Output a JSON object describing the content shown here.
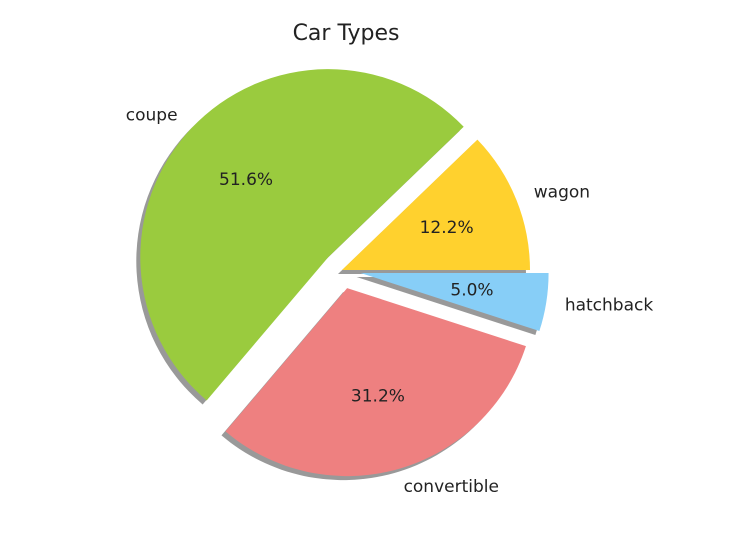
{
  "chart_data": {
    "type": "pie",
    "title": "Car Types",
    "start_angle_deg": 0,
    "direction": "counterclockwise",
    "shadow": true,
    "slices": [
      {
        "label": "wagon",
        "value": 12.2,
        "pct_text": "12.2%",
        "color": "#FFD12E",
        "explode": 0.0
      },
      {
        "label": "coupe",
        "value": 51.6,
        "pct_text": "51.6%",
        "color": "#9ACB3E",
        "explode": 0.1
      },
      {
        "label": "convertible",
        "value": 31.2,
        "pct_text": "31.2%",
        "color": "#EE8080",
        "explode": 0.1
      },
      {
        "label": "hatchback",
        "value": 5.0,
        "pct_text": "5.0%",
        "color": "#87CEF7",
        "explode": 0.1
      }
    ]
  }
}
